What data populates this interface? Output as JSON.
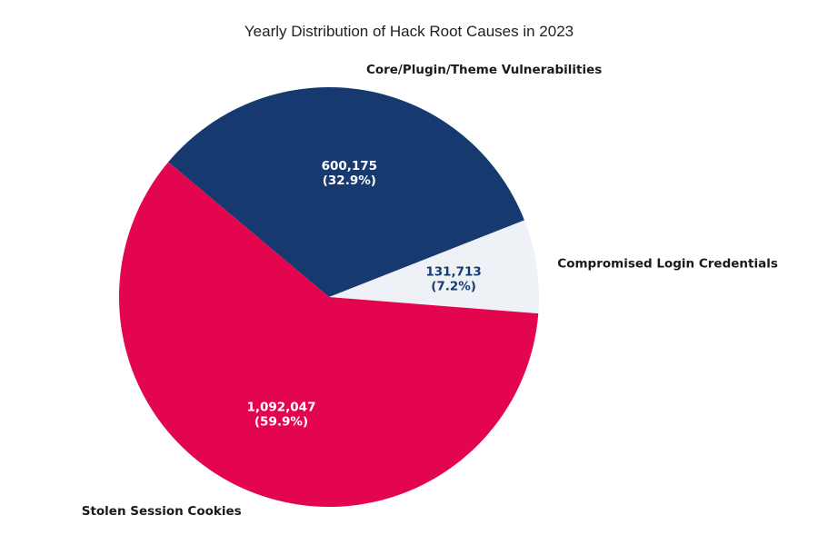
{
  "chart_data": {
    "type": "pie",
    "title": "Yearly Distribution of Hack Root Causes in 2023",
    "categories": [
      "Compromised Login Credentials",
      "Core/Plugin/Theme Vulnerabilities",
      "Stolen Session Cookies"
    ],
    "values": [
      131713,
      600175,
      1092047
    ],
    "value_labels": [
      "131,713",
      "600,175",
      "1,092,047"
    ],
    "percent_labels": [
      "(7.2%)",
      "(32.9%)",
      "(59.9%)"
    ],
    "colors": [
      "#eef2f7",
      "#163a70",
      "#e3064f"
    ],
    "label_colors": [
      "#163a70",
      "#ffffff",
      "#ffffff"
    ]
  }
}
